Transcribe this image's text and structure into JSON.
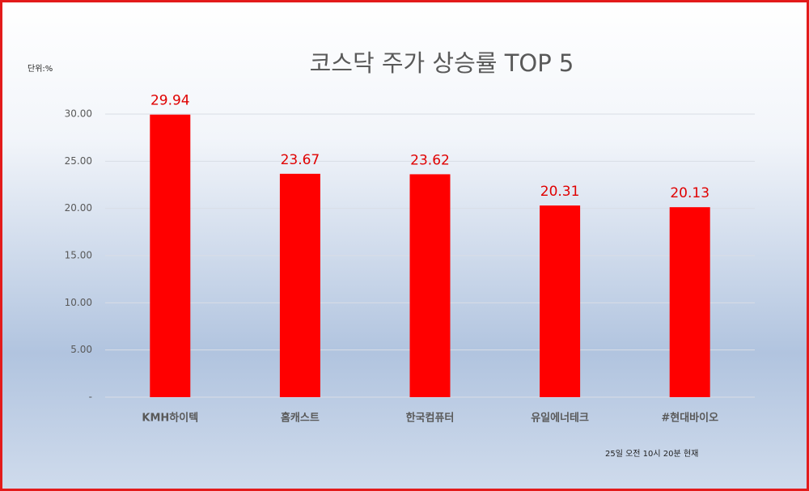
{
  "chart_data": {
    "type": "bar",
    "title": "코스닥 주가 상승률 TOP 5",
    "unit_label": "단위:%",
    "note": "25일 오전 10시 20분 현재",
    "categories": [
      "KMH하이텍",
      "홈캐스트",
      "한국컴퓨터",
      "유일에너테크",
      "#현대바이오"
    ],
    "values": [
      29.94,
      23.67,
      23.62,
      20.31,
      20.13
    ],
    "color": "#ff0000",
    "ylim": [
      0,
      30
    ],
    "yticks": [
      {
        "value": 0,
        "label": "-"
      },
      {
        "value": 5,
        "label": "5.00"
      },
      {
        "value": 10,
        "label": "10.00"
      },
      {
        "value": 15,
        "label": "15.00"
      },
      {
        "value": 20,
        "label": "20.00"
      },
      {
        "value": 25,
        "label": "25.00"
      },
      {
        "value": 30,
        "label": "30.00"
      }
    ],
    "grid": true
  }
}
